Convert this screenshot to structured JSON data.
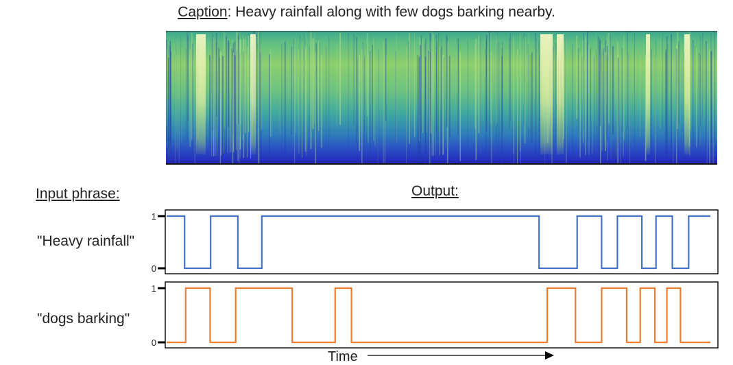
{
  "caption": {
    "prefix": "Caption",
    "text": ": Heavy rainfall along with few dogs barking nearby."
  },
  "labels": {
    "input_phrase": "Input phrase:",
    "output": "Output:",
    "time": "Time"
  },
  "colors": {
    "series_rain": "#4472c4",
    "series_dog": "#ed7d31",
    "frame": "#000000"
  },
  "chart_data": [
    {
      "type": "line",
      "series": [
        {
          "name": "\"Heavy rainfall\""
        }
      ],
      "yticks": [
        "1",
        "0"
      ],
      "ylim": [
        0,
        1
      ],
      "segments": [
        [
          0,
          1
        ],
        [
          0.033,
          0
        ],
        [
          0.081,
          1
        ],
        [
          0.131,
          0
        ],
        [
          0.175,
          1
        ],
        [
          0.685,
          0
        ],
        [
          0.755,
          1
        ],
        [
          0.8,
          0
        ],
        [
          0.829,
          1
        ],
        [
          0.874,
          0
        ],
        [
          0.9,
          1
        ],
        [
          0.93,
          0
        ],
        [
          0.96,
          1
        ]
      ]
    },
    {
      "type": "line",
      "series": [
        {
          "name": "\"dogs barking\""
        }
      ],
      "yticks": [
        "1",
        "0"
      ],
      "ylim": [
        0,
        1
      ],
      "segments": [
        [
          0,
          0
        ],
        [
          0.035,
          1
        ],
        [
          0.08,
          0
        ],
        [
          0.127,
          1
        ],
        [
          0.231,
          0
        ],
        [
          0.31,
          1
        ],
        [
          0.34,
          0
        ],
        [
          0.7,
          1
        ],
        [
          0.752,
          0
        ],
        [
          0.8,
          1
        ],
        [
          0.846,
          0
        ],
        [
          0.871,
          1
        ],
        [
          0.898,
          0
        ],
        [
          0.92,
          1
        ],
        [
          0.945,
          0
        ]
      ]
    }
  ]
}
